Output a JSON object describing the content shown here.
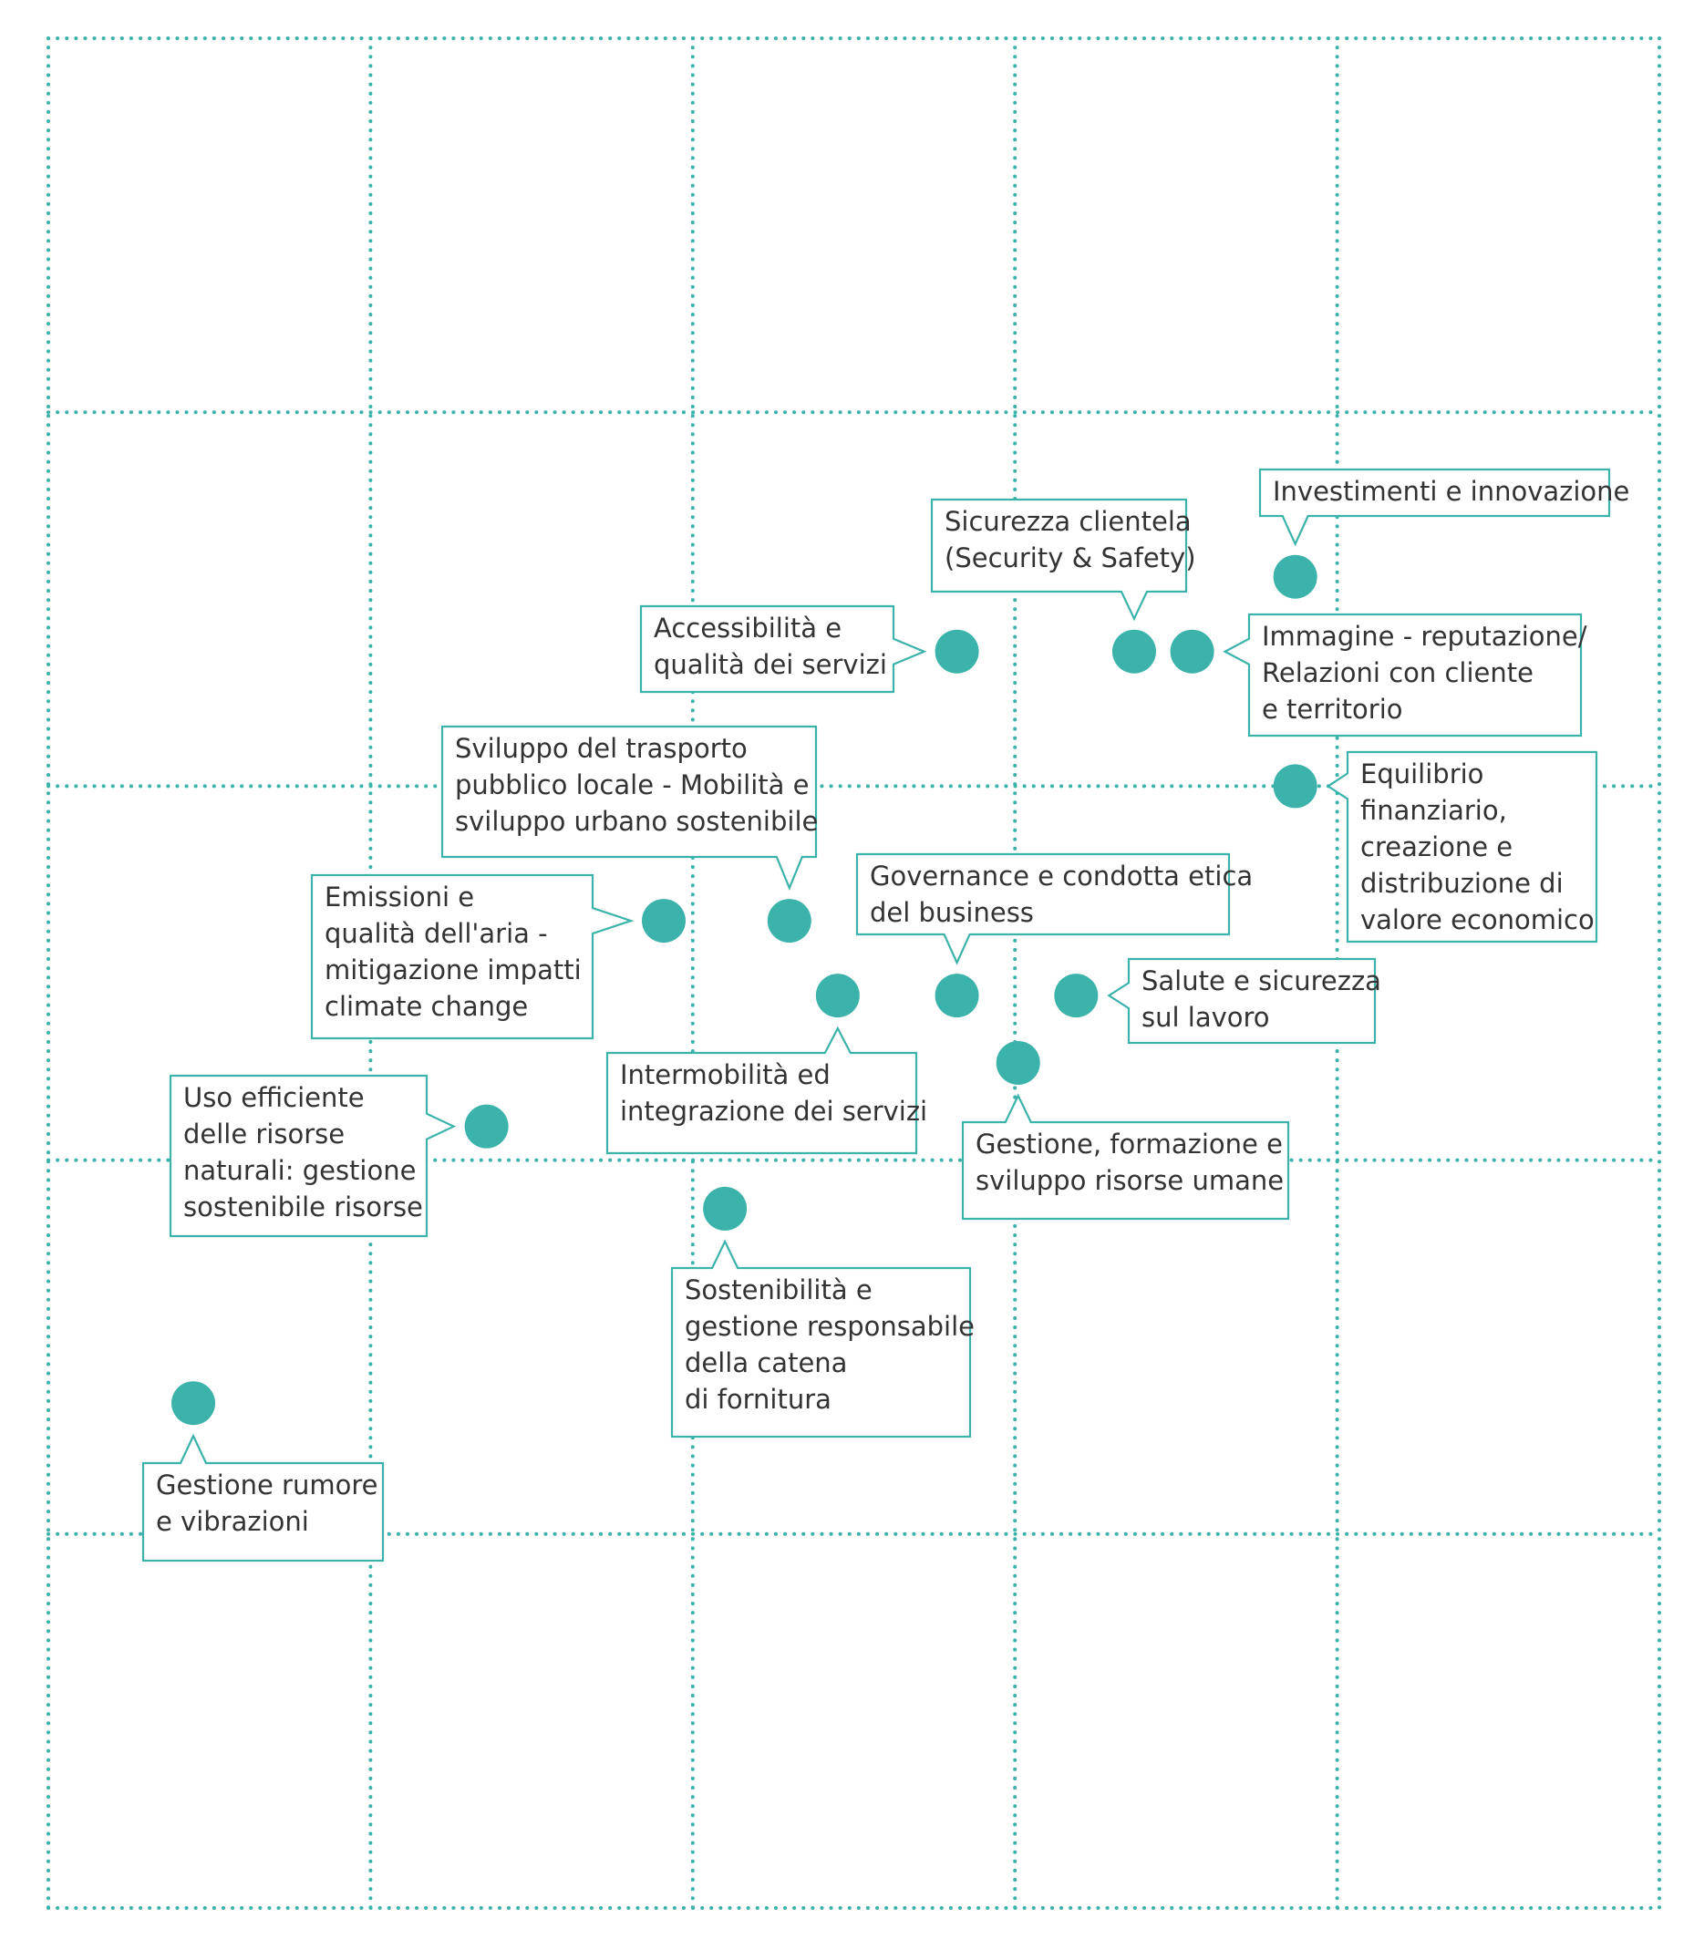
{
  "chart_data": {
    "type": "scatter",
    "title": "",
    "xlabel": "",
    "ylabel": "",
    "xlim": [
      0,
      5
    ],
    "ylim": [
      0,
      5
    ],
    "grid": true,
    "colors": {
      "point": "#3bb3aa",
      "grid": "#3bb3aa",
      "callout_border": "#3bb3aa",
      "text": "#333333"
    },
    "points": [
      {
        "label": "Investimenti e innovazione",
        "x": 3.87,
        "y": 3.56
      },
      {
        "label": "Sicurezza clientela\n(Security & Safety)",
        "x": 3.37,
        "y": 3.36
      },
      {
        "label": "Immagine - reputazione/\nRelazioni con cliente\ne territorio",
        "x": 3.55,
        "y": 3.36
      },
      {
        "label": "Accessibilità e\nqualità dei servizi",
        "x": 2.82,
        "y": 3.36
      },
      {
        "label": "Equilibrio\nfinanziario,\ncreazione e\ndistribuzione di\nvalore economico",
        "x": 3.87,
        "y": 3.0
      },
      {
        "label": "Sviluppo del trasporto\npubblico locale - Mobilità e\nsviluppo urbano sostenibile",
        "x": 2.3,
        "y": 2.64
      },
      {
        "label": "Emissioni e\nqualità dell'aria -\nmitigazione impatti\nclimate change",
        "x": 1.91,
        "y": 2.64
      },
      {
        "label": "Governance e condotta etica\ndel business",
        "x": 2.82,
        "y": 2.44
      },
      {
        "label": "Intermobilità ed\nintegrazione dei servizi",
        "x": 2.45,
        "y": 2.44
      },
      {
        "label": "Salute e sicurezza\nsul lavoro",
        "x": 3.19,
        "y": 2.44
      },
      {
        "label": "Gestione, formazione e\nsviluppo risorse umane",
        "x": 3.01,
        "y": 2.26
      },
      {
        "label": "Uso efficiente\ndelle risorse\nnaturali: gestione\nsostenibile risorse",
        "x": 1.36,
        "y": 2.09
      },
      {
        "label": "Sostenibilità e\ngestione responsabile\ndella catena\ndi fornitura",
        "x": 2.1,
        "y": 1.87
      },
      {
        "label": "Gestione rumore\ne vibrazioni",
        "x": 0.45,
        "y": 1.35
      }
    ]
  }
}
